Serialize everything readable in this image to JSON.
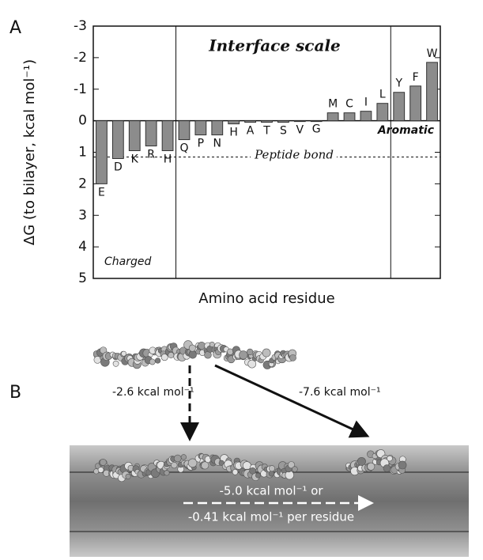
{
  "panel_labels": [
    "A",
    "B"
  ],
  "chart_data": {
    "type": "bar",
    "y_label": "ΔG (to bilayer, kcal mol⁻¹)",
    "x_label": "Amino acid residue",
    "annotations": [
      "Interface scale",
      "Aromatic",
      "Charged"
    ],
    "reference_line": {
      "label": "Peptide bond",
      "value": 1.15
    },
    "categories": [
      "E",
      "D",
      "K",
      "R",
      "H",
      "Q",
      "P",
      "N",
      "H",
      "A",
      "T",
      "S",
      "V",
      "G",
      "M",
      "C",
      "I",
      "L",
      "Y",
      "F",
      "W"
    ],
    "values": [
      2.0,
      1.2,
      0.95,
      0.8,
      0.95,
      0.6,
      0.45,
      0.45,
      0.1,
      0.05,
      0.05,
      0.05,
      0.02,
      0.0,
      -0.25,
      -0.25,
      -0.3,
      -0.55,
      -0.9,
      -1.1,
      -1.85
    ],
    "color": "#8c8c8c",
    "ylim": [
      -3,
      5
    ],
    "yticks": [
      -3,
      -2,
      -1,
      0,
      1,
      2,
      3,
      4,
      5
    ],
    "y_inverted": true
  },
  "diagram": {
    "labels": [
      "-2.6 kcal mol⁻¹",
      "-7.6 kcal mol⁻¹",
      "-5.0 kcal mol⁻¹ or",
      "-0.41 kcal mol⁻¹ per residue"
    ]
  }
}
